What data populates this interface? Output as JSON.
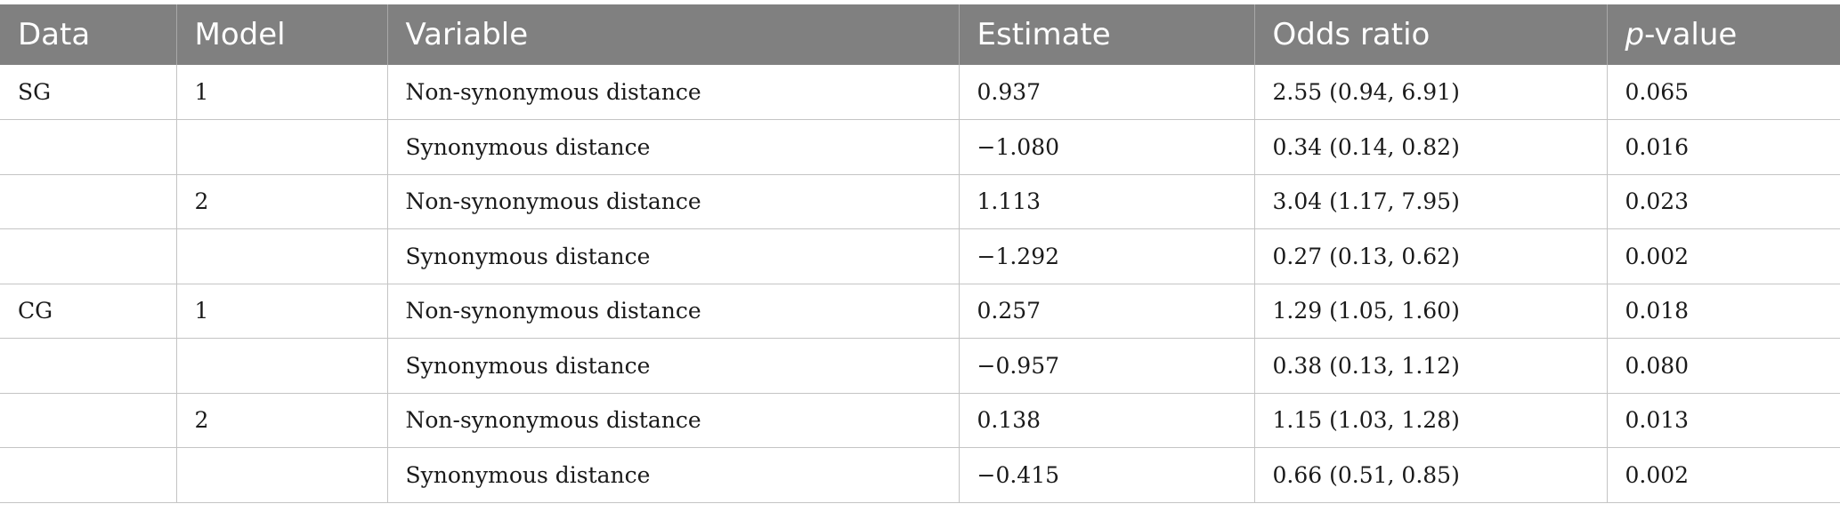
{
  "table": {
    "headers": {
      "data": "Data",
      "model": "Model",
      "variable": "Variable",
      "estimate": "Estimate",
      "odds_ratio": "Odds ratio",
      "p_value_prefix": "p",
      "p_value_suffix": "-value"
    },
    "rows": [
      {
        "data": "SG",
        "model": "1",
        "variable": "Non-synonymous distance",
        "estimate": "0.937",
        "odds_ratio": "2.55 (0.94, 6.91)",
        "p_value": "0.065"
      },
      {
        "data": "",
        "model": "",
        "variable": "Synonymous distance",
        "estimate": "−1.080",
        "odds_ratio": "0.34 (0.14, 0.82)",
        "p_value": "0.016"
      },
      {
        "data": "",
        "model": "2",
        "variable": "Non-synonymous distance",
        "estimate": "1.113",
        "odds_ratio": "3.04 (1.17, 7.95)",
        "p_value": "0.023"
      },
      {
        "data": "",
        "model": "",
        "variable": "Synonymous distance",
        "estimate": "−1.292",
        "odds_ratio": "0.27 (0.13, 0.62)",
        "p_value": "0.002"
      },
      {
        "data": "CG",
        "model": "1",
        "variable": "Non-synonymous distance",
        "estimate": "0.257",
        "odds_ratio": "1.29 (1.05, 1.60)",
        "p_value": "0.018"
      },
      {
        "data": "",
        "model": "",
        "variable": "Synonymous distance",
        "estimate": "−0.957",
        "odds_ratio": "0.38 (0.13, 1.12)",
        "p_value": "0.080"
      },
      {
        "data": "",
        "model": "2",
        "variable": "Non-synonymous distance",
        "estimate": "0.138",
        "odds_ratio": "1.15 (1.03, 1.28)",
        "p_value": "0.013"
      },
      {
        "data": "",
        "model": "",
        "variable": "Synonymous distance",
        "estimate": "−0.415",
        "odds_ratio": "0.66 (0.51, 0.85)",
        "p_value": "0.002"
      }
    ]
  }
}
